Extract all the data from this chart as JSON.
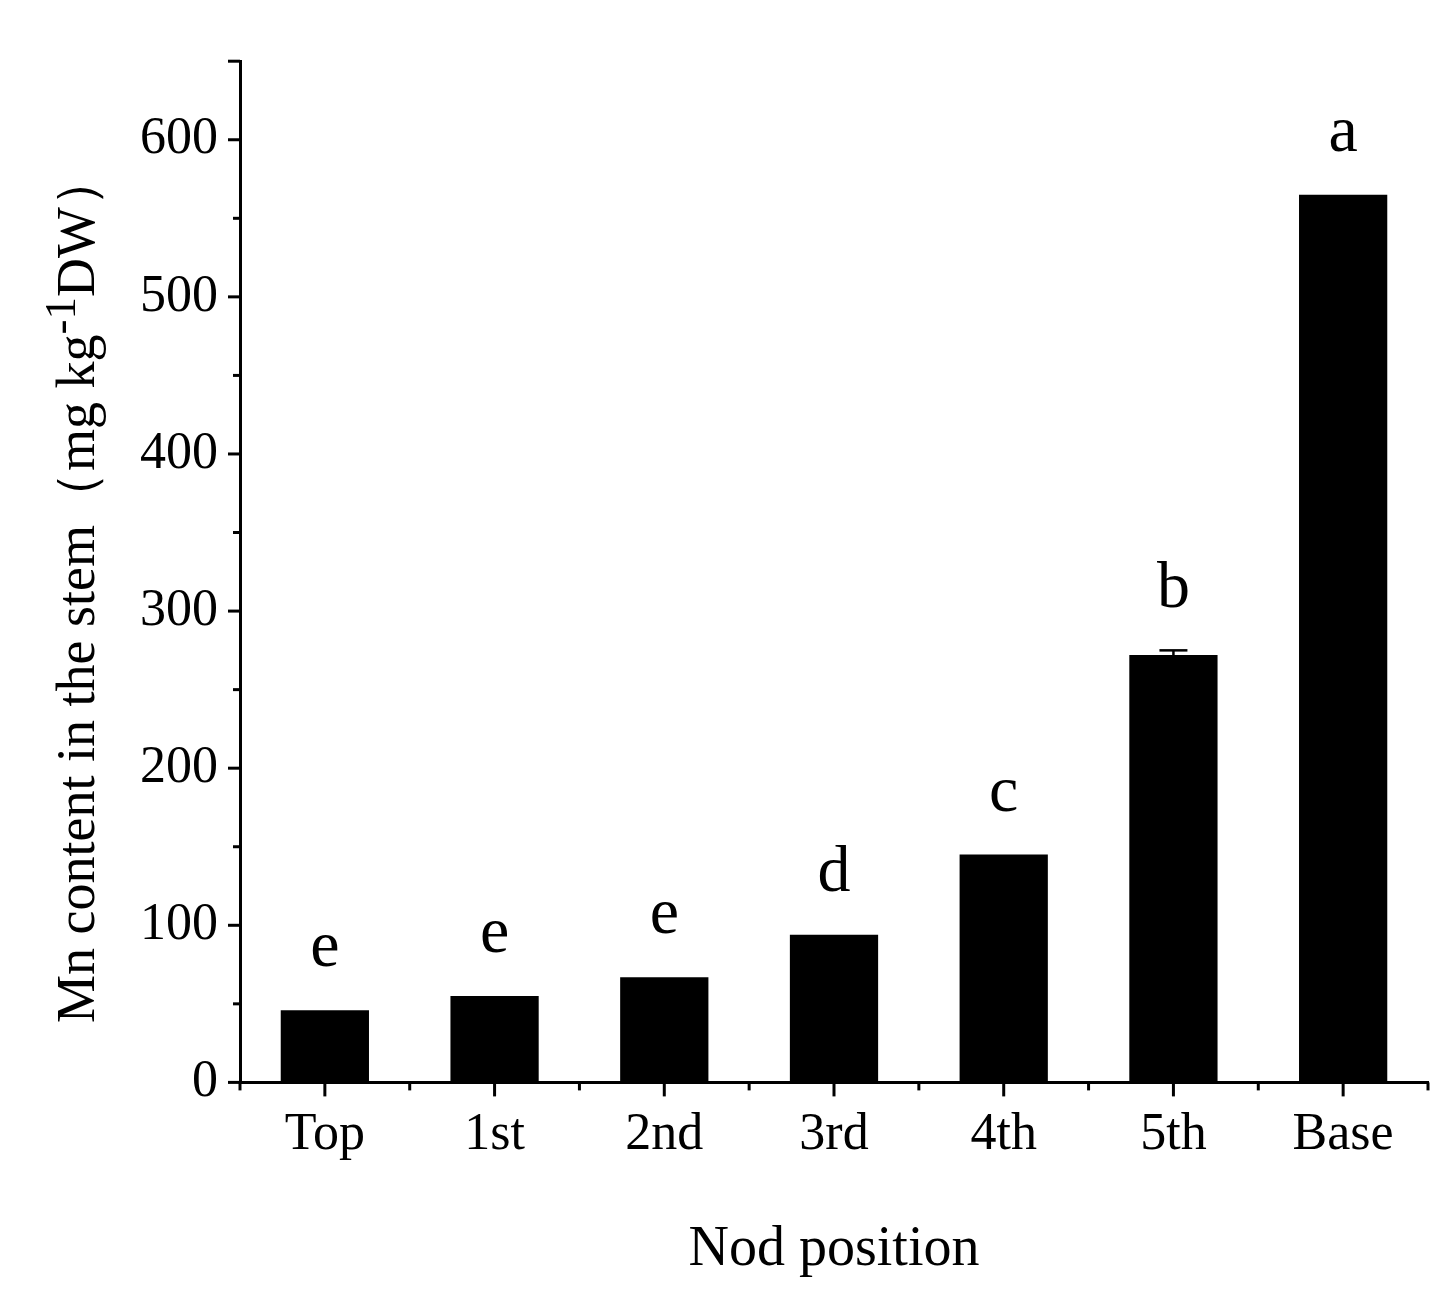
{
  "chart_data": {
    "type": "bar",
    "xlabel": "Nod position",
    "ylabel": "Mn content in the stem（mg kg$^{-1}$DW）",
    "categories": [
      "Top",
      "1st",
      "2nd",
      "3rd",
      "4th",
      "5th",
      "Base"
    ],
    "values": [
      46,
      55,
      67,
      94,
      145,
      272,
      565
    ],
    "errors": [
      null,
      null,
      null,
      null,
      null,
      3,
      null
    ],
    "color": "#000000",
    "ylim": [
      0,
      650
    ],
    "yticks": [
      0,
      100,
      200,
      300,
      400,
      500,
      600
    ],
    "grid": false,
    "legend": false,
    "annotations": [
      {
        "text": "e",
        "x": "Top",
        "y": 46
      },
      {
        "text": "e",
        "x": "1st",
        "y": 55
      },
      {
        "text": "e",
        "x": "2nd",
        "y": 67
      },
      {
        "text": "d",
        "x": "3rd",
        "y": 94
      },
      {
        "text": "c",
        "x": "4th",
        "y": 145
      },
      {
        "text": "b",
        "x": "5th",
        "y": 275
      },
      {
        "text": "a",
        "x": "Base",
        "y": 565
      }
    ]
  }
}
